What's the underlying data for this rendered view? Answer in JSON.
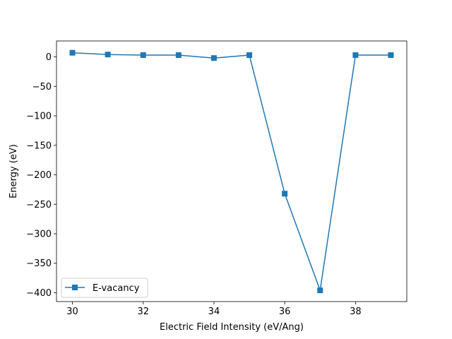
{
  "chart_data": {
    "type": "line",
    "title": "",
    "xlabel": "Electric Field Intensity (eV/Ang)",
    "ylabel": "Energy (eV)",
    "xlim": [
      29.55,
      39.45
    ],
    "ylim": [
      -415,
      27
    ],
    "xticks": [
      30,
      32,
      34,
      36,
      38
    ],
    "xtick_labels": [
      "30",
      "32",
      "34",
      "36",
      "38"
    ],
    "yticks": [
      0,
      -50,
      -100,
      -150,
      -200,
      -250,
      -300,
      -350,
      -400
    ],
    "ytick_labels": [
      "0",
      "−50",
      "−100",
      "−150",
      "−200",
      "−250",
      "−300",
      "−350",
      "−400"
    ],
    "grid": false,
    "legend_position": "lower-left",
    "series": [
      {
        "name": "E-vacancy",
        "color": "#1f77b4",
        "marker": "square",
        "x": [
          30,
          31,
          32,
          33,
          34,
          35,
          36,
          37,
          38,
          39
        ],
        "y": [
          7,
          4,
          3,
          3,
          -2,
          3,
          -232,
          -396,
          3,
          3
        ]
      }
    ]
  }
}
